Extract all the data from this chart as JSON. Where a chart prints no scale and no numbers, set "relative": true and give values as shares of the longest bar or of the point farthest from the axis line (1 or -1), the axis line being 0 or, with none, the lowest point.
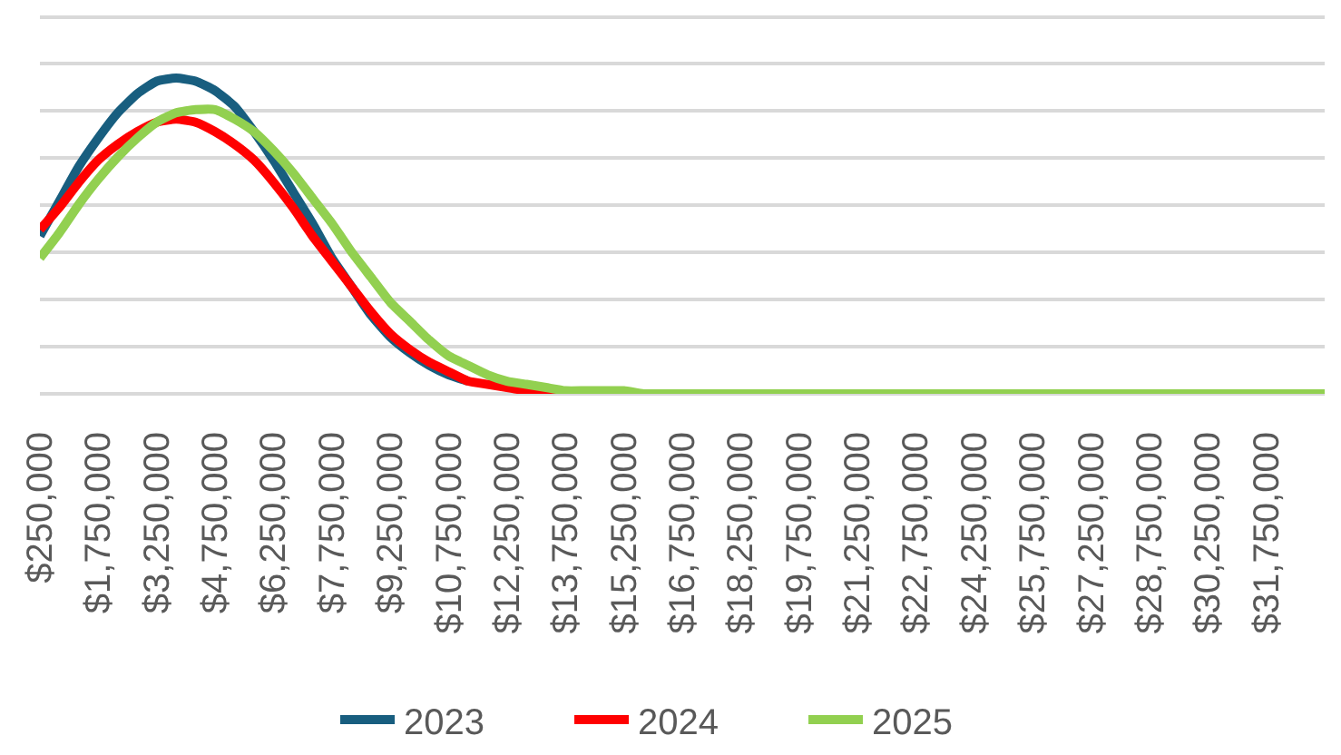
{
  "chart_data": {
    "type": "line",
    "relative": true,
    "grid": "y",
    "legend": "bottom",
    "categories": [
      "$250,000",
      null,
      null,
      "$1,750,000",
      null,
      null,
      "$3,250,000",
      null,
      null,
      "$4,750,000",
      null,
      null,
      "$6,250,000",
      null,
      null,
      "$7,750,000",
      null,
      null,
      "$9,250,000",
      null,
      null,
      "$10,750,000",
      null,
      null,
      "$12,250,000",
      null,
      null,
      "$13,750,000",
      null,
      null,
      "$15,250,000",
      null,
      null,
      "$16,750,000",
      null,
      null,
      "$18,250,000",
      null,
      null,
      "$19,750,000",
      null,
      null,
      "$21,250,000",
      null,
      null,
      "$22,750,000",
      null,
      null,
      "$24,250,000",
      null,
      null,
      "$25,750,000",
      null,
      null,
      "$27,250,000",
      null,
      null,
      "$28,750,000",
      null,
      null,
      "$30,250,000",
      null,
      null,
      "$31,750,000",
      null,
      null,
      null
    ],
    "series": [
      {
        "name": "2023",
        "color": "#185e7f",
        "values": [
          0.5,
          0.61,
          0.72,
          0.81,
          0.89,
          0.95,
          0.99,
          1,
          0.99,
          0.96,
          0.91,
          0.83,
          0.74,
          0.64,
          0.54,
          0.43,
          0.34,
          0.25,
          0.18,
          0.13,
          0.09,
          0.06,
          0.04,
          null,
          null,
          null,
          null,
          null,
          null,
          null,
          null,
          null,
          null,
          null,
          null,
          null,
          null,
          null,
          null,
          null,
          null,
          null,
          null,
          null,
          null,
          null,
          null,
          null,
          null,
          null,
          null,
          null,
          null,
          null,
          null,
          null,
          null,
          null,
          null,
          null,
          null,
          null,
          null,
          null,
          null,
          null,
          null
        ]
      },
      {
        "name": "2024",
        "color": "#ff0000",
        "values": [
          0.52,
          0.59,
          0.67,
          0.74,
          0.79,
          0.83,
          0.86,
          0.87,
          0.86,
          0.83,
          0.79,
          0.74,
          0.67,
          0.59,
          0.5,
          0.42,
          0.34,
          0.26,
          0.19,
          0.14,
          0.1,
          0.07,
          0.04,
          0.03,
          0.02,
          0.01,
          0.01,
          0,
          null,
          null,
          null,
          null,
          null,
          null,
          null,
          null,
          null,
          null,
          null,
          null,
          null,
          null,
          null,
          null,
          null,
          null,
          null,
          null,
          null,
          null,
          null,
          null,
          null,
          null,
          null,
          null,
          null,
          null,
          null,
          null,
          null,
          null,
          null,
          null,
          null,
          null,
          null
        ]
      },
      {
        "name": "2025",
        "color": "#92d050",
        "values": [
          0.43,
          0.51,
          0.6,
          0.68,
          0.75,
          0.81,
          0.86,
          0.89,
          0.9,
          0.9,
          0.87,
          0.83,
          0.77,
          0.7,
          0.62,
          0.54,
          0.45,
          0.37,
          0.29,
          0.23,
          0.17,
          0.12,
          0.09,
          0.06,
          0.04,
          0.03,
          0.02,
          0.01,
          0.01,
          0.01,
          0.01,
          0,
          0,
          0,
          0,
          0,
          0,
          0,
          0,
          0,
          0,
          0,
          0,
          0,
          0,
          0,
          0,
          0,
          0,
          0,
          0,
          0,
          0,
          0,
          0,
          0,
          0,
          0,
          0,
          0,
          0,
          0,
          0,
          0,
          0,
          0,
          0
        ]
      }
    ]
  }
}
